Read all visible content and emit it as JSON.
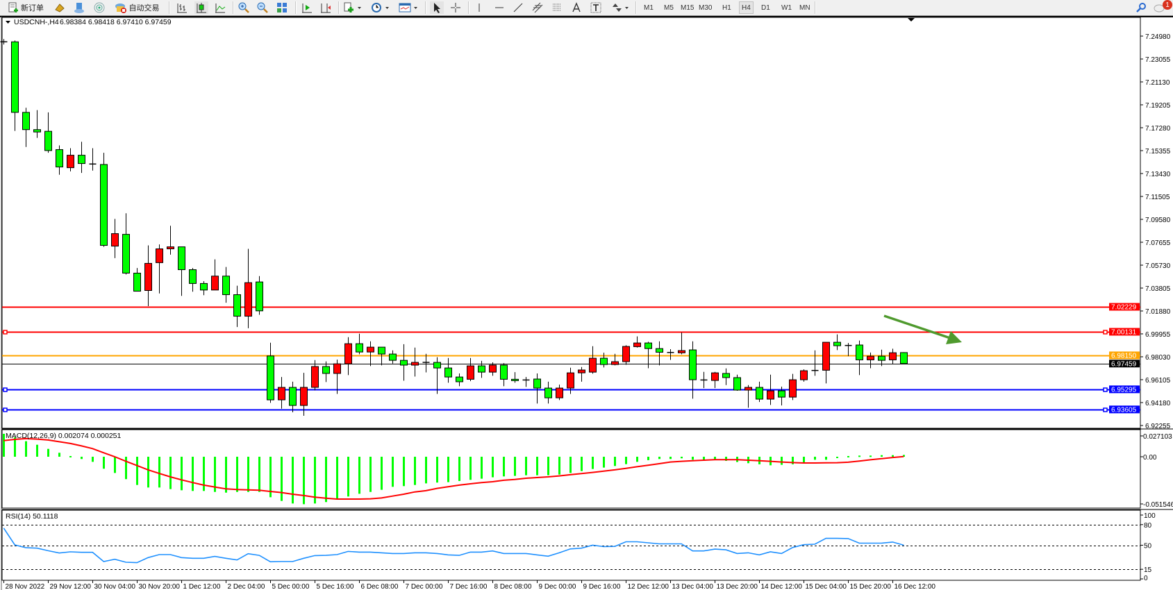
{
  "toolbar": {
    "new_order_label": "新订单",
    "auto_trading_label": "自动交易",
    "timeframes": [
      "M1",
      "M5",
      "M15",
      "M30",
      "H1",
      "H4",
      "D1",
      "W1",
      "MN"
    ],
    "active_timeframe": "H4",
    "notification_count": "1",
    "icons": [
      "new-order-icon",
      "gold-bars-icon",
      "market-icon",
      "signals-icon",
      "auto-trading-icon",
      "bar-chart-icon",
      "candlestick-icon",
      "line-chart-icon",
      "zoom-in-icon",
      "zoom-out-icon",
      "tile-windows-icon",
      "auto-scroll-icon",
      "chart-shift-icon",
      "indicators-icon",
      "periods-icon",
      "templates-icon",
      "cursor-icon",
      "crosshair-icon",
      "vertical-line-icon",
      "horizontal-line-icon",
      "trendline-icon",
      "equidistant-channel-icon",
      "fibonacci-icon",
      "text-icon",
      "text-label-icon",
      "arrows-icon",
      "search-icon",
      "chat-icon"
    ]
  },
  "chart": {
    "symbol": "USDCNH-,H4",
    "ohlc": "6.98384 6.98418 6.97410 6.97459",
    "macd_label": "MACD(12,26,9) 0.002074 0.000251",
    "rsi_label": "RSI(14) 50.1118"
  },
  "chart_data": {
    "type": "candlestick",
    "symbol": "USDCNH-",
    "timeframe": "H4",
    "colors": {
      "down_body": "#00ff00",
      "up_body": "#ff0000",
      "wick": "#000000",
      "macd_histogram": "#00ff00",
      "macd_signal": "#ff0000",
      "rsi": "#1e90ff",
      "arrow": "#4f9a2e"
    },
    "candles_ohlc": [
      [
        7.245,
        7.2473,
        7.2427,
        7.245
      ],
      [
        7.245,
        7.2461,
        7.1701,
        7.1857
      ],
      [
        7.1857,
        7.1896,
        7.1566,
        7.1712
      ],
      [
        7.1712,
        7.1876,
        7.1643,
        7.1692
      ],
      [
        7.1698,
        7.1857,
        7.1517,
        7.1536
      ],
      [
        7.1544,
        7.1579,
        7.1333,
        7.1398
      ],
      [
        7.1392,
        7.1556,
        7.1361,
        7.1497
      ],
      [
        7.1497,
        7.161,
        7.1348,
        7.1427
      ],
      [
        7.1423,
        7.1556,
        7.1368,
        7.1423
      ],
      [
        7.1419,
        7.1517,
        7.0727,
        7.0739
      ],
      [
        7.0733,
        7.0962,
        7.0632,
        7.0838
      ],
      [
        7.0832,
        7.1009,
        7.0494,
        7.0506
      ],
      [
        7.0506,
        7.0549,
        7.0354,
        7.0354
      ],
      [
        7.036,
        7.0739,
        7.0229,
        7.0588
      ],
      [
        7.0594,
        7.0747,
        7.0335,
        7.071
      ],
      [
        7.071,
        7.0904,
        7.0661,
        7.0727
      ],
      [
        7.0727,
        7.0727,
        7.0315,
        7.0535
      ],
      [
        7.0535,
        7.0549,
        7.035,
        7.0419
      ],
      [
        7.0419,
        7.0438,
        7.0321,
        7.0364
      ],
      [
        7.0364,
        7.0622,
        7.0364,
        7.0481
      ],
      [
        7.0481,
        7.0558,
        7.0257,
        7.0325
      ],
      [
        7.0325,
        7.04,
        7.0053,
        7.0144
      ],
      [
        7.0144,
        7.071,
        7.0043,
        7.0426
      ],
      [
        7.0432,
        7.0481,
        7.0156,
        7.0189
      ],
      [
        6.981,
        6.9921,
        6.9416,
        6.9441
      ],
      [
        6.9441,
        6.9633,
        6.9367,
        6.9546
      ],
      [
        6.9546,
        6.9594,
        6.9336,
        6.9394
      ],
      [
        6.9394,
        6.9668,
        6.9307,
        6.9546
      ],
      [
        6.9546,
        6.9775,
        6.9521,
        6.9721
      ],
      [
        6.9721,
        6.9764,
        6.9591,
        6.9663
      ],
      [
        6.9663,
        6.9779,
        6.9491,
        6.9744
      ],
      [
        6.9744,
        6.9968,
        6.9649,
        6.9913
      ],
      [
        6.9913,
        6.9997,
        6.9824,
        6.9843
      ],
      [
        6.9843,
        6.9933,
        6.9725,
        6.9884
      ],
      [
        6.9884,
        6.9884,
        6.9731,
        6.9826
      ],
      [
        6.9826,
        6.9857,
        6.9746,
        6.9773
      ],
      [
        6.9773,
        6.9909,
        6.9602,
        6.9733
      ],
      [
        6.9733,
        6.988,
        6.9637,
        6.9756
      ],
      [
        6.9756,
        6.9828,
        6.9672,
        6.9756
      ],
      [
        6.9756,
        6.9799,
        6.9491,
        6.9709
      ],
      [
        6.9709,
        6.9793,
        6.9585,
        6.9633
      ],
      [
        6.9633,
        6.9663,
        6.9556,
        6.9593
      ],
      [
        6.9614,
        6.9793,
        6.9598,
        6.9727
      ],
      [
        6.9727,
        6.9769,
        6.9626,
        6.9674
      ],
      [
        6.9674,
        6.9756,
        6.9643,
        6.9733
      ],
      [
        6.9733,
        6.975,
        6.9556,
        6.9614
      ],
      [
        6.9614,
        6.9674,
        6.9585,
        6.9604
      ],
      [
        6.9608,
        6.9633,
        6.955,
        6.9608
      ],
      [
        6.9616,
        6.9663,
        6.941,
        6.954
      ],
      [
        6.954,
        6.9594,
        6.941,
        6.9458
      ],
      [
        6.9458,
        6.9569,
        6.9439,
        6.954
      ],
      [
        6.954,
        6.9711,
        6.9491,
        6.9668
      ],
      [
        6.9668,
        6.9717,
        6.9594,
        6.9692
      ],
      [
        6.9674,
        6.9892,
        6.9661,
        6.9791
      ],
      [
        6.9791,
        6.9837,
        6.9713,
        6.9738
      ],
      [
        6.9738,
        6.9828,
        6.9731,
        6.9762
      ],
      [
        6.9762,
        6.99,
        6.9736,
        6.989
      ],
      [
        6.9888,
        6.9974,
        6.988,
        6.9919
      ],
      [
        6.9919,
        6.9929,
        6.9707,
        6.9872
      ],
      [
        6.9872,
        6.9933,
        6.9731,
        6.9841
      ],
      [
        6.9839,
        6.9867,
        6.9777,
        6.9839
      ],
      [
        6.9836,
        7.0007,
        6.9824,
        6.9855
      ],
      [
        6.9861,
        6.9933,
        6.9451,
        6.961
      ],
      [
        6.9608,
        6.9676,
        6.954,
        6.9608
      ],
      [
        6.9604,
        6.9676,
        6.954,
        6.9668
      ],
      [
        6.9663,
        6.9705,
        6.9565,
        6.9628
      ],
      [
        6.9628,
        6.9653,
        6.9517,
        6.9523
      ],
      [
        6.9523,
        6.9565,
        6.9375,
        6.9546
      ],
      [
        6.9546,
        6.9594,
        6.9423,
        6.9447
      ],
      [
        6.9447,
        6.9653,
        6.9398,
        6.9517
      ],
      [
        6.9517,
        6.9552,
        6.9394,
        6.9464
      ],
      [
        6.9464,
        6.9659,
        6.9439,
        6.961
      ],
      [
        6.961,
        6.9697,
        6.9594,
        6.9686
      ],
      [
        6.9688,
        6.9857,
        6.9643,
        6.9688
      ],
      [
        6.969,
        6.9925,
        6.9579,
        6.9925
      ],
      [
        6.9925,
        6.9991,
        6.9859,
        6.9896
      ],
      [
        6.9898,
        6.9919,
        6.9808,
        6.9898
      ],
      [
        6.9902,
        6.9939,
        6.9649,
        6.9777
      ],
      [
        6.9777,
        6.9839,
        6.9707,
        6.9808
      ],
      [
        6.9808,
        6.9863,
        6.9725,
        6.9773
      ],
      [
        6.9777,
        6.9871,
        6.9744,
        6.9837
      ],
      [
        6.98384,
        6.98418,
        6.9741,
        6.97459
      ]
    ],
    "price_axis": {
      "range": [
        6.92,
        7.257
      ],
      "ticks": [
        "7.24980",
        "7.23055",
        "7.21130",
        "7.19205",
        "7.17280",
        "7.15355",
        "7.13430",
        "7.11505",
        "7.09580",
        "7.07655",
        "7.05730",
        "7.03805",
        "7.01880",
        "6.99955",
        "6.98030",
        "6.96105",
        "6.94180",
        "6.92255"
      ]
    },
    "time_axis": {
      "labels": [
        "28 Nov 2022",
        "29 Nov 12:00",
        "30 Nov 04:00",
        "30 Nov 20:00",
        "1 Dec 12:00",
        "2 Dec 04:00",
        "5 Dec 00:00",
        "5 Dec 16:00",
        "6 Dec 08:00",
        "7 Dec 00:00",
        "7 Dec 16:00",
        "8 Dec 08:00",
        "9 Dec 00:00",
        "9 Dec 16:00",
        "12 Dec 12:00",
        "13 Dec 04:00",
        "13 Dec 20:00",
        "14 Dec 12:00",
        "15 Dec 04:00",
        "15 Dec 20:00",
        "16 Dec 12:00"
      ],
      "label_bar_index": [
        0,
        4,
        8,
        12,
        16,
        20,
        24,
        28,
        32,
        36,
        40,
        44,
        48,
        52,
        56,
        60,
        64,
        68,
        72,
        76,
        80
      ]
    },
    "levels": [
      {
        "price": 7.02229,
        "label": "7.02229",
        "color": "#ff0000",
        "marker": false
      },
      {
        "price": 7.00131,
        "label": "7.00131",
        "color": "#ff0000",
        "marker": true
      },
      {
        "price": 6.9815,
        "label": "6.98150",
        "color": "#ffa500",
        "marker": false
      },
      {
        "price": 6.97459,
        "label": "6.97459",
        "color": "#000000",
        "marker": false
      },
      {
        "price": 6.95295,
        "label": "6.95295",
        "color": "#0000ff",
        "marker": true
      },
      {
        "price": 6.93605,
        "label": "6.93605",
        "color": "#0000ff",
        "marker": true
      }
    ],
    "annotation": {
      "type": "arrow",
      "direction": "down-right"
    },
    "macd": {
      "params": "12,26,9",
      "axis_labels": [
        "0.027103",
        "0.00",
        "-0.051546"
      ],
      "axis_values": [
        0.027103,
        0,
        -0.051546
      ],
      "histogram": [
        0.026,
        0.022,
        0.0176,
        0.0136,
        0.0089,
        0.0045,
        0.0008,
        -0.0026,
        -0.0058,
        -0.0136,
        -0.0184,
        -0.0254,
        -0.032,
        -0.0349,
        -0.0349,
        -0.0367,
        -0.038,
        -0.0388,
        -0.0388,
        -0.0399,
        -0.0407,
        -0.0399,
        -0.0399,
        -0.0399,
        -0.0459,
        -0.0501,
        -0.053,
        -0.0538,
        -0.053,
        -0.0514,
        -0.048,
        -0.0451,
        -0.042,
        -0.0399,
        -0.0375,
        -0.0341,
        -0.0333,
        -0.032,
        -0.0302,
        -0.0293,
        -0.0288,
        -0.0275,
        -0.0262,
        -0.0249,
        -0.0233,
        -0.0223,
        -0.0217,
        -0.021,
        -0.021,
        -0.021,
        -0.0202,
        -0.0184,
        -0.0163,
        -0.0139,
        -0.0123,
        -0.0105,
        -0.0084,
        -0.0058,
        -0.0039,
        -0.0026,
        -0.0026,
        -0.0018,
        -0.0034,
        -0.0039,
        -0.0039,
        -0.0047,
        -0.006,
        -0.0073,
        -0.0086,
        -0.0097,
        -0.0092,
        -0.0086,
        -0.0066,
        -0.0034,
        -0.0034,
        -0.0003,
        0.0008,
        0.0013,
        0.0013,
        0.0018,
        0.0018,
        0.002074
      ],
      "signal": [
        0.0183,
        0.0197,
        0.0205,
        0.02,
        0.019,
        0.017,
        0.015,
        0.0123,
        0.0092,
        0.0045,
        0,
        -0.0052,
        -0.01,
        -0.0149,
        -0.019,
        -0.0228,
        -0.0262,
        -0.0293,
        -0.0322,
        -0.0343,
        -0.0364,
        -0.0372,
        -0.0375,
        -0.038,
        -0.0393,
        -0.0406,
        -0.0425,
        -0.044,
        -0.0459,
        -0.047,
        -0.048,
        -0.048,
        -0.048,
        -0.0477,
        -0.0467,
        -0.0446,
        -0.0425,
        -0.0399,
        -0.0385,
        -0.0359,
        -0.0341,
        -0.0322,
        -0.0307,
        -0.0293,
        -0.0283,
        -0.0267,
        -0.0257,
        -0.0244,
        -0.0236,
        -0.0228,
        -0.0217,
        -0.0204,
        -0.0191,
        -0.0178,
        -0.0163,
        -0.0149,
        -0.0131,
        -0.0113,
        -0.0097,
        -0.0079,
        -0.006,
        -0.0052,
        -0.0045,
        -0.0039,
        -0.0034,
        -0.0034,
        -0.0034,
        -0.0039,
        -0.0045,
        -0.0052,
        -0.006,
        -0.0066,
        -0.0071,
        -0.0071,
        -0.0069,
        -0.0068,
        -0.0062,
        -0.0049,
        -0.0035,
        -0.0022,
        -0.0009,
        0.000251
      ]
    },
    "rsi": {
      "period": 14,
      "axis_labels": [
        "100",
        "80",
        "50",
        "15",
        "0"
      ],
      "axis_values": [
        100,
        80,
        50,
        15,
        0
      ],
      "dashed_levels": [
        80,
        50,
        15
      ],
      "values": [
        75,
        50.5,
        46.4,
        45.8,
        42,
        38.7,
        40.4,
        39.7,
        39.7,
        26.3,
        29.6,
        25.3,
        24.6,
        32,
        36.4,
        36.4,
        32,
        31,
        31,
        33.7,
        31,
        28.6,
        37.7,
        35.3,
        26,
        26.3,
        26.3,
        31,
        35,
        35.3,
        36.4,
        41,
        40,
        40,
        39,
        38,
        38,
        39,
        39,
        38,
        36,
        35.3,
        40,
        40,
        41.7,
        38,
        38,
        38,
        36,
        34,
        39,
        44.6,
        45.8,
        50,
        48,
        48.3,
        55,
        55,
        53.5,
        52,
        52,
        52,
        41.7,
        41.7,
        44.3,
        43.3,
        38,
        39,
        36,
        40.4,
        38,
        46.7,
        50.8,
        51.5,
        60,
        60,
        59.7,
        53,
        53,
        53,
        54.6,
        50.1118
      ]
    }
  }
}
